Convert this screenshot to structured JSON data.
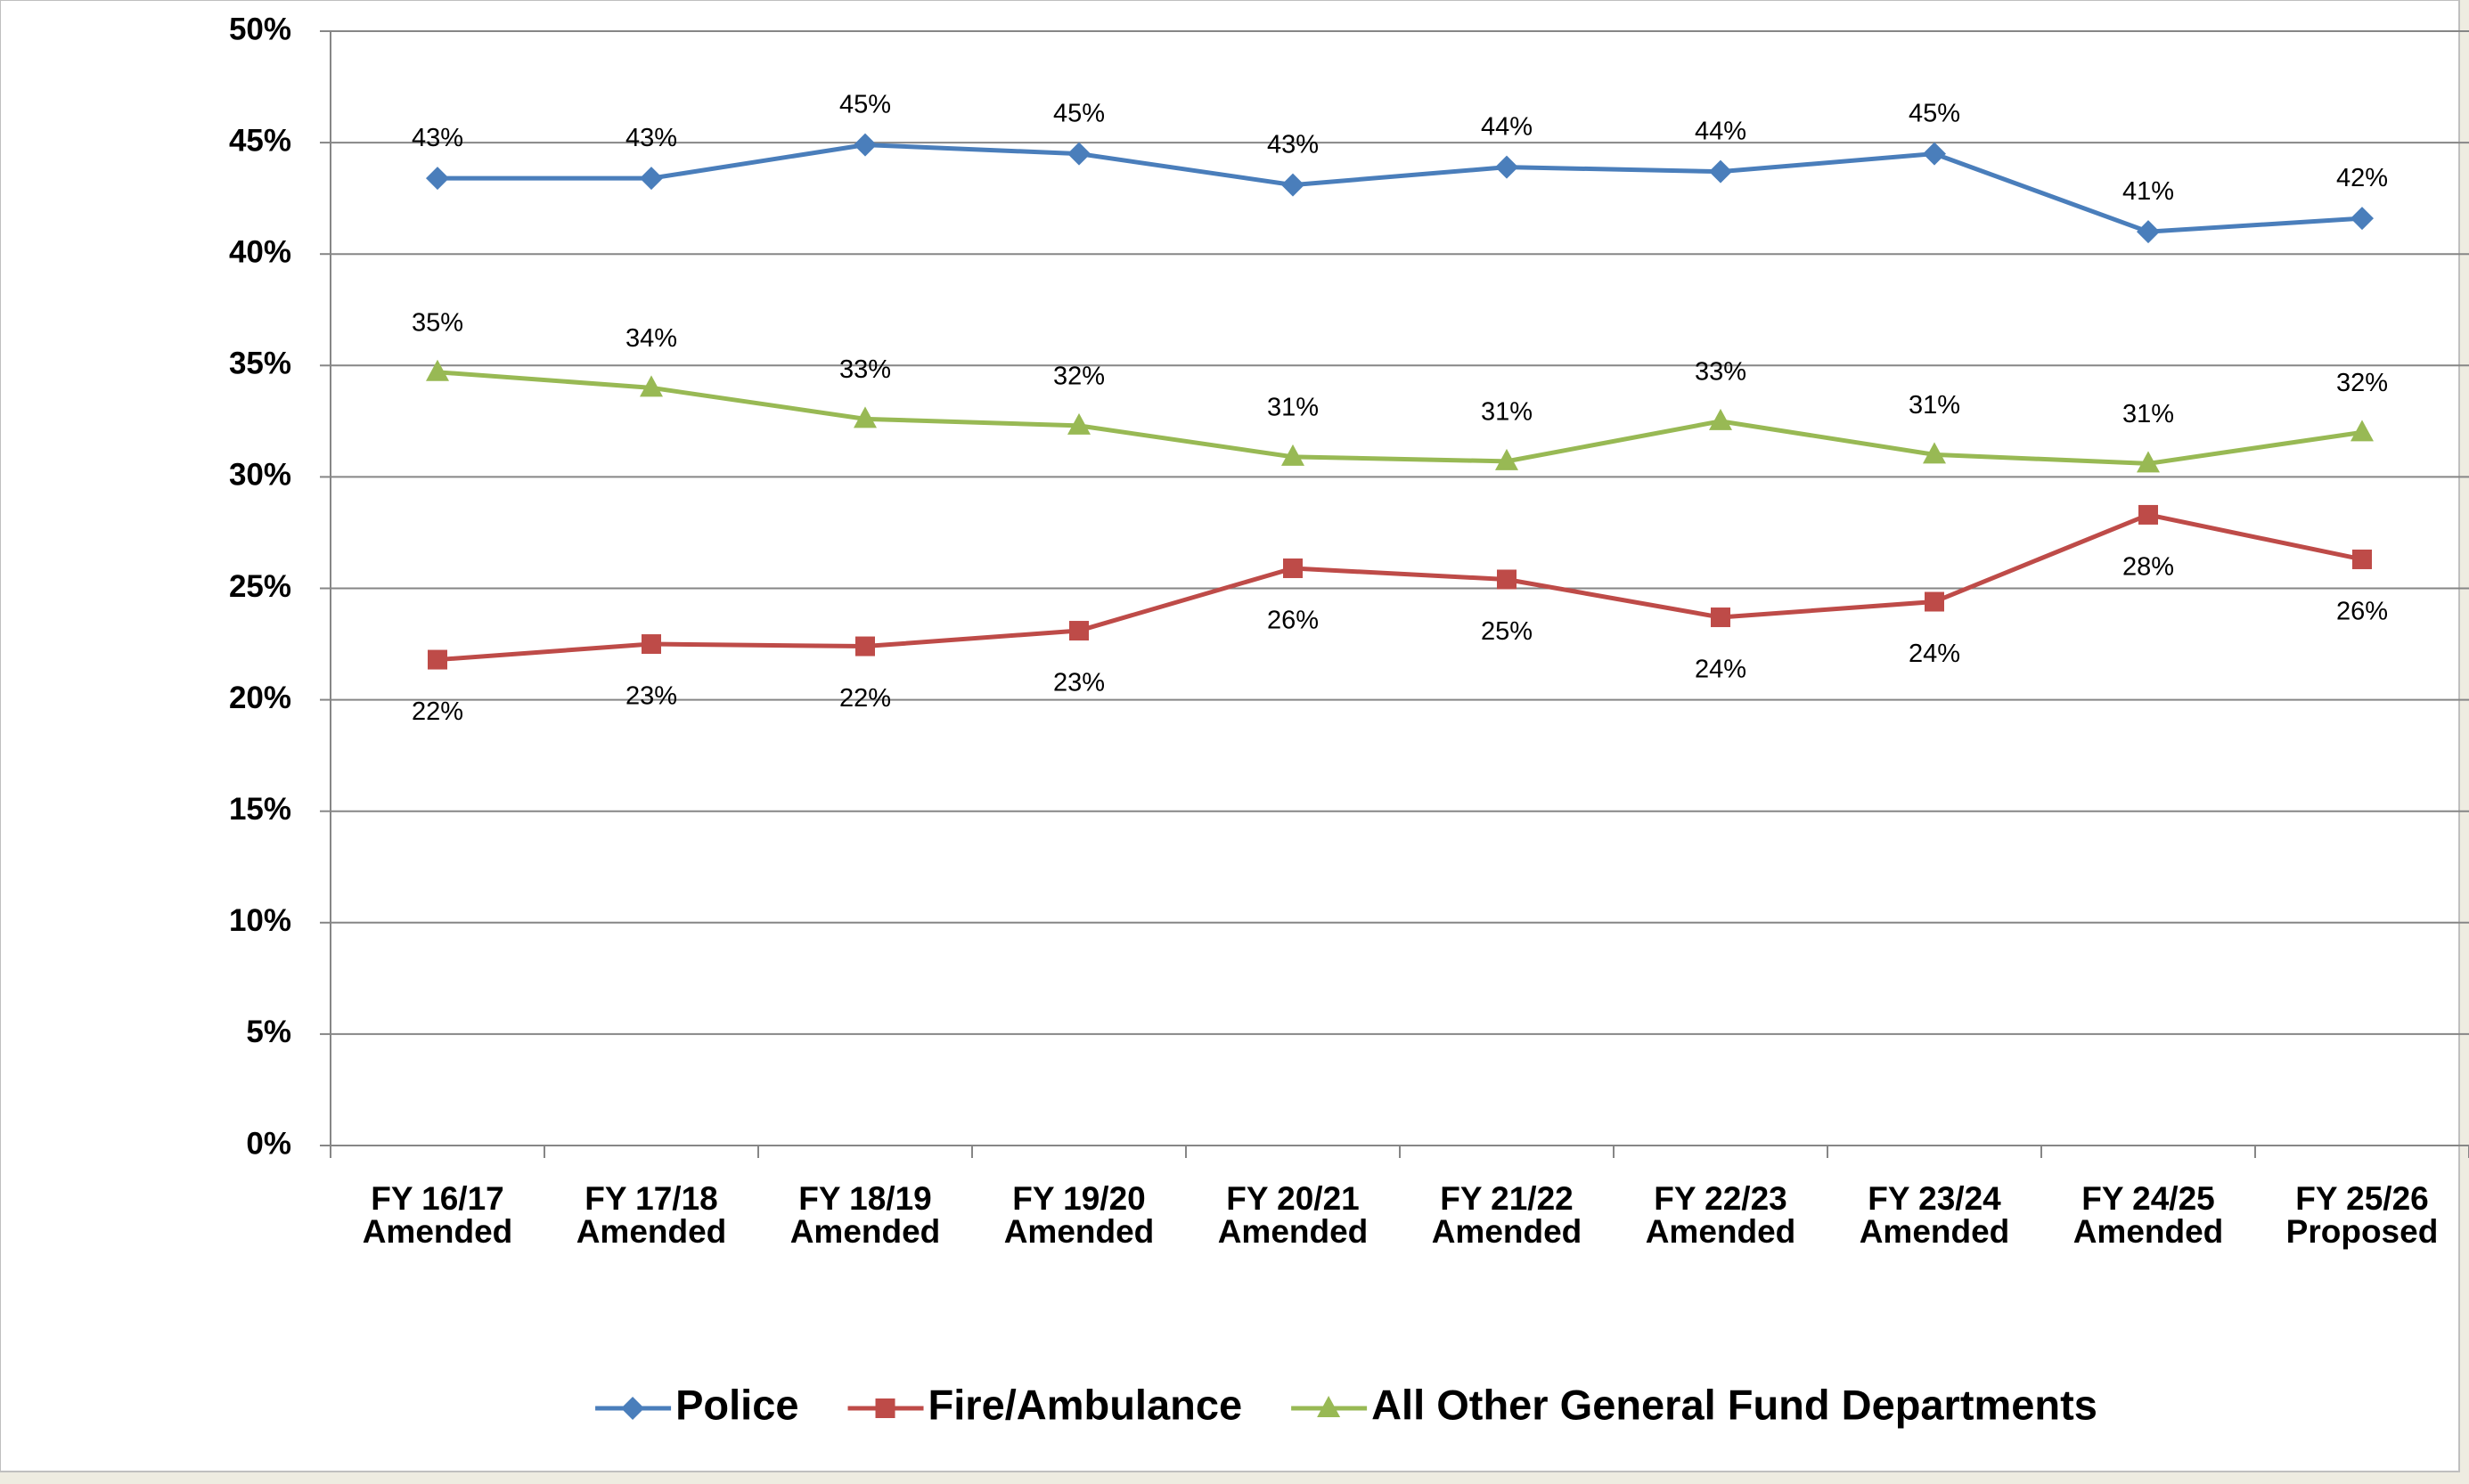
{
  "chart_data": {
    "type": "line",
    "categories": [
      "FY 16/17\nAmended",
      "FY 17/18\nAmended",
      "FY 18/19\nAmended",
      "FY 19/20\nAmended",
      "FY 20/21\nAmended",
      "FY 21/22\nAmended",
      "FY 22/23\nAmended",
      "FY 23/24\nAmended",
      "FY 24/25\nAmended",
      "FY 25/26\nProposed"
    ],
    "series": [
      {
        "name": "Police",
        "color": "#4a7ebb",
        "marker": "diamond",
        "values": [
          43.4,
          43.4,
          44.9,
          44.5,
          43.1,
          43.9,
          43.7,
          44.5,
          41.0,
          41.6
        ],
        "value_labels": [
          "43%",
          "43%",
          "45%",
          "45%",
          "43%",
          "44%",
          "44%",
          "45%",
          "41%",
          "42%"
        ]
      },
      {
        "name": "Fire/Ambulance",
        "color": "#be4b48",
        "marker": "square",
        "values": [
          21.8,
          22.5,
          22.4,
          23.1,
          25.9,
          25.4,
          23.7,
          24.4,
          28.3,
          26.3
        ],
        "value_labels": [
          "22%",
          "23%",
          "22%",
          "23%",
          "26%",
          "25%",
          "24%",
          "24%",
          "28%",
          "26%"
        ]
      },
      {
        "name": "All Other General Fund Departments",
        "color": "#98b954",
        "marker": "triangle",
        "values": [
          34.7,
          34.0,
          32.6,
          32.3,
          30.9,
          30.7,
          32.5,
          31.0,
          30.6,
          32.0
        ],
        "value_labels": [
          "35%",
          "34%",
          "33%",
          "32%",
          "31%",
          "31%",
          "33%",
          "31%",
          "31%",
          "32%"
        ]
      }
    ],
    "ylim": [
      0,
      50
    ],
    "yticks": [
      {
        "value": 0,
        "label": "0%"
      },
      {
        "value": 5,
        "label": "5%"
      },
      {
        "value": 10,
        "label": "10%"
      },
      {
        "value": 15,
        "label": "15%"
      },
      {
        "value": 20,
        "label": "20%"
      },
      {
        "value": 25,
        "label": "25%"
      },
      {
        "value": 30,
        "label": "30%"
      },
      {
        "value": 35,
        "label": "35%"
      },
      {
        "value": 40,
        "label": "40%"
      },
      {
        "value": 45,
        "label": "45%"
      },
      {
        "value": 50,
        "label": "50%"
      }
    ],
    "grid": true,
    "legend": "bottom"
  }
}
